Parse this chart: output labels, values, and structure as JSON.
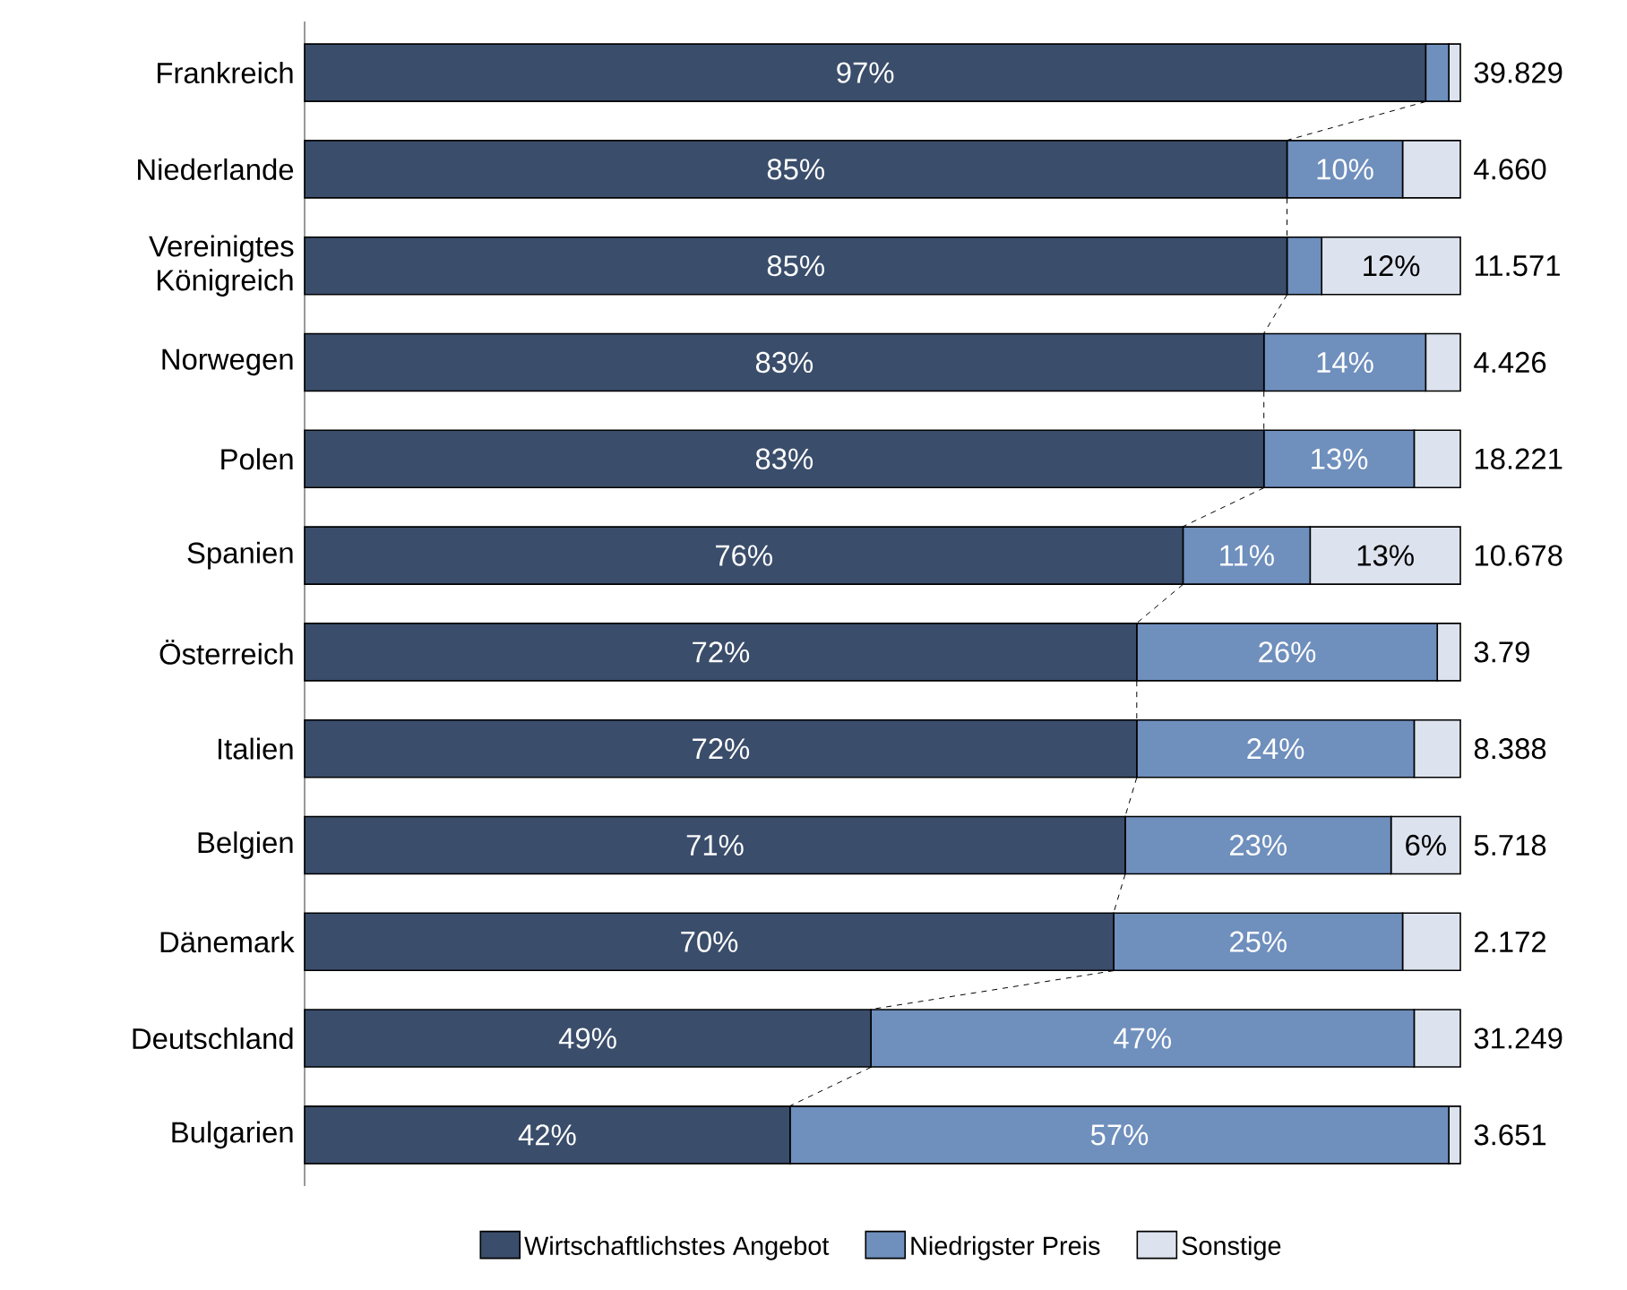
{
  "chart_data": {
    "type": "bar",
    "orientation": "horizontal",
    "stacked": true,
    "categories": [
      "Frankreich",
      "Niederlande",
      "Vereinigtes Königreich",
      "Norwegen",
      "Polen",
      "Spanien",
      "Österreich",
      "Italien",
      "Belgien",
      "Dänemark",
      "Deutschland",
      "Bulgarien"
    ],
    "series": [
      {
        "name": "Wirtschaftlichstes Angebot",
        "color": "#3a4d6b",
        "values": [
          97,
          85,
          85,
          83,
          83,
          76,
          72,
          72,
          71,
          70,
          49,
          42
        ],
        "value_labels": [
          "97%",
          "85%",
          "85%",
          "83%",
          "83%",
          "76%",
          "72%",
          "72%",
          "71%",
          "70%",
          "49%",
          "42%"
        ]
      },
      {
        "name": "Niedrigster Preis",
        "color": "#6f8fbd",
        "values": [
          2,
          10,
          3,
          14,
          13,
          11,
          26,
          24,
          23,
          25,
          47,
          57
        ],
        "value_labels": [
          null,
          "10%",
          null,
          "14%",
          "13%",
          "11%",
          "26%",
          "24%",
          "23%",
          "25%",
          "47%",
          "57%"
        ]
      },
      {
        "name": "Sonstige",
        "color": "#dde3ee",
        "values": [
          1,
          5,
          12,
          3,
          4,
          13,
          2,
          4,
          6,
          5,
          4,
          1
        ],
        "value_labels": [
          null,
          null,
          "12%",
          null,
          null,
          "13%",
          null,
          null,
          "6%",
          null,
          null,
          null
        ]
      }
    ],
    "annotations": [
      "39.829",
      "4.660",
      "11.571",
      "4.426",
      "18.221",
      "10.678",
      "3.79",
      "8.388",
      "5.718",
      "2.172",
      "31.249",
      "3.651"
    ],
    "legend": "bottom"
  }
}
